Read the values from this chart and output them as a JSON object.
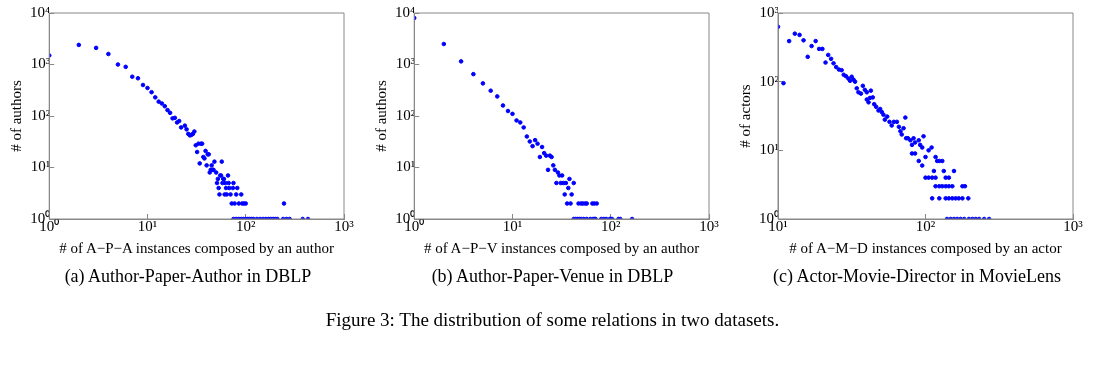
{
  "chart_data": [
    {
      "type": "scatter",
      "title": "(a) Author-Paper-Author in DBLP",
      "xlabel": "# of A−P−A instances composed by an author",
      "ylabel": "# of authors",
      "log": "xy",
      "grid": false,
      "marker": "circle",
      "legend": false,
      "xlim": [
        1,
        1000
      ],
      "ylim": [
        1,
        10000
      ],
      "xticks": [
        {
          "value": 1,
          "label": "10⁰"
        },
        {
          "value": 10,
          "label": "10¹"
        },
        {
          "value": 100,
          "label": "10²"
        },
        {
          "value": 1000,
          "label": "10³"
        }
      ],
      "yticks": [
        {
          "value": 1,
          "label": "10⁰"
        },
        {
          "value": 10,
          "label": "10¹"
        },
        {
          "value": 100,
          "label": "10²"
        },
        {
          "value": 1000,
          "label": "10³"
        },
        {
          "value": 10000,
          "label": "10⁴"
        }
      ],
      "annotations": [
        "Figure 3: The distribution of some relations in two datasets."
      ],
      "series": [
        {
          "color": "#0000ff",
          "x": [
            1,
            2,
            3,
            4,
            5,
            6,
            7,
            8,
            9,
            10,
            11,
            12,
            13,
            14,
            15,
            16,
            17,
            18,
            19,
            20,
            21,
            22,
            24,
            25,
            26,
            27,
            28,
            29,
            30,
            31,
            32,
            33,
            34,
            35,
            36,
            37,
            38,
            39,
            40,
            41,
            42,
            43,
            44,
            45,
            46,
            47,
            48,
            50,
            51,
            52,
            53,
            54,
            55,
            56,
            57,
            58,
            59,
            60,
            61,
            62,
            63,
            64,
            66,
            67,
            68,
            70,
            72,
            74,
            75,
            77,
            80,
            82,
            85,
            90,
            92,
            96,
            100,
            75,
            80,
            85,
            90,
            95,
            100,
            105,
            110,
            115,
            120,
            130,
            140,
            150,
            160,
            170,
            180,
            190,
            200,
            210,
            240,
            245,
            260,
            280,
            380,
            430
          ],
          "values": [
            1500,
            2400,
            2100,
            1600,
            1000,
            900,
            580,
            540,
            400,
            350,
            290,
            230,
            190,
            175,
            155,
            130,
            115,
            90,
            92,
            75,
            80,
            60,
            65,
            55,
            45,
            42,
            43,
            45,
            50,
            27,
            20,
            29,
            12,
            29,
            29,
            16,
            15,
            21,
            11,
            18,
            18,
            8,
            9,
            11,
            9,
            9,
            13,
            8,
            5,
            6,
            4,
            3,
            7,
            7,
            13,
            5,
            6,
            6,
            3,
            5,
            4,
            3,
            7,
            5,
            4,
            3,
            2,
            4,
            5,
            2,
            3,
            4,
            2,
            3,
            2,
            2,
            2,
            1,
            1,
            1,
            1,
            1,
            1,
            1,
            1,
            1,
            1,
            1,
            1,
            1,
            1,
            1,
            1,
            1,
            1,
            1,
            1,
            2,
            1,
            1,
            1,
            1
          ]
        }
      ]
    },
    {
      "type": "scatter",
      "title": "(b) Author-Paper-Venue in DBLP",
      "xlabel": "# of A−P−V instances composed by an author",
      "ylabel": "# of authors",
      "log": "xy",
      "grid": false,
      "marker": "circle",
      "legend": false,
      "xlim": [
        1,
        1000
      ],
      "ylim": [
        1,
        10000
      ],
      "xticks": [
        {
          "value": 1,
          "label": "10⁰"
        },
        {
          "value": 10,
          "label": "10¹"
        },
        {
          "value": 100,
          "label": "10²"
        },
        {
          "value": 1000,
          "label": "10³"
        }
      ],
      "yticks": [
        {
          "value": 1,
          "label": "10⁰"
        },
        {
          "value": 10,
          "label": "10¹"
        },
        {
          "value": 100,
          "label": "10²"
        },
        {
          "value": 1000,
          "label": "10³"
        },
        {
          "value": 10000,
          "label": "10⁴"
        }
      ],
      "series": [
        {
          "color": "#0000ff",
          "x": [
            1,
            2,
            3,
            4,
            5,
            6,
            7,
            8,
            9,
            10,
            11,
            12,
            13,
            14,
            15,
            16,
            17,
            18,
            19,
            20,
            21,
            22,
            23,
            24,
            25,
            26,
            27,
            28,
            29,
            30,
            31,
            32,
            33,
            34,
            35,
            36,
            37,
            38,
            39,
            40,
            42,
            47,
            50,
            52,
            55,
            57,
            65,
            68,
            72,
            42,
            44,
            46,
            48,
            50,
            53,
            57,
            62,
            66,
            68,
            70,
            80,
            85,
            90,
            98,
            100,
            103,
            120,
            125,
            165
          ],
          "values": [
            8000,
            2500,
            1150,
            650,
            430,
            310,
            240,
            160,
            125,
            110,
            82,
            75,
            60,
            40,
            32,
            26,
            34,
            29,
            16,
            25,
            19,
            17,
            9,
            17,
            16,
            11,
            9,
            5,
            8,
            7,
            5,
            7,
            5,
            3,
            5,
            2,
            4,
            6,
            2,
            3,
            5,
            2,
            2,
            2,
            2,
            2,
            2,
            2,
            2,
            1,
            1,
            1,
            1,
            1,
            1,
            1,
            1,
            1,
            1,
            1,
            1,
            1,
            1,
            1,
            1,
            1,
            1,
            1,
            1
          ]
        }
      ]
    },
    {
      "type": "scatter",
      "title": "(c) Actor-Movie-Director in MovieLens",
      "xlabel": "# of A−M−D instances composed by an actor",
      "ylabel": "# of actors",
      "log": "xy",
      "grid": false,
      "marker": "circle",
      "legend": false,
      "xlim": [
        10,
        1000
      ],
      "ylim": [
        1,
        1000
      ],
      "xticks": [
        {
          "value": 10,
          "label": "10¹"
        },
        {
          "value": 100,
          "label": "10²"
        },
        {
          "value": 1000,
          "label": "10³"
        }
      ],
      "yticks": [
        {
          "value": 1,
          "label": "10⁰"
        },
        {
          "value": 10,
          "label": "10¹"
        },
        {
          "value": 100,
          "label": "10²"
        },
        {
          "value": 1000,
          "label": "10³"
        }
      ],
      "series": [
        {
          "color": "#0000ff",
          "x": [
            10,
            10.9,
            11.9,
            13,
            14,
            14.9,
            15.9,
            16.9,
            18,
            19,
            20,
            21,
            21.9,
            22.9,
            23.8,
            24.8,
            25.9,
            27,
            27.9,
            28.9,
            30,
            30.8,
            31.6,
            32.5,
            33.3,
            34.2,
            35.1,
            36.5,
            37.6,
            38.8,
            40,
            40,
            41.1,
            42,
            42.6,
            43.9,
            44.9,
            46.3,
            48,
            49.3,
            50.6,
            51.9,
            53,
            55,
            57,
            59,
            61,
            64,
            66,
            67.6,
            69,
            71,
            73,
            73.9,
            76,
            79,
            81,
            83,
            85,
            90,
            92,
            97,
            95,
            81,
            85,
            90,
            95,
            100,
            105,
            110,
            117,
            120,
            124,
            130,
            100,
            105,
            111,
            117,
            137,
            144,
            114,
            133,
            156,
            117,
            124,
            130,
            137,
            144,
            152,
            178,
            185,
            111,
            124,
            137,
            144,
            152,
            160,
            168,
            178,
            195,
            140,
            148,
            156,
            164,
            173,
            183,
            197,
            208,
            219,
            231,
            250,
            270
          ],
          "values": [
            630,
            95,
            390,
            500,
            480,
            400,
            230,
            330,
            390,
            300,
            300,
            190,
            245,
            215,
            185,
            163,
            150,
            147,
            126,
            120,
            111,
            103,
            118,
            107,
            100,
            80,
            70,
            67,
            87,
            76,
            70,
            55,
            50,
            58,
            74,
            59,
            47,
            43,
            38,
            40,
            36,
            33,
            28,
            31,
            26,
            23,
            26,
            26,
            22,
            19,
            17,
            21,
            30,
            15,
            15,
            14,
            12,
            15,
            13,
            14,
            12,
            16,
            11,
            9,
            9,
            7,
            6,
            8,
            10,
            11,
            8,
            7,
            7,
            7,
            4,
            4,
            4,
            4,
            4,
            4,
            5,
            5,
            5,
            3,
            3,
            3,
            3,
            3,
            3,
            3,
            3,
            2,
            2,
            2,
            2,
            2,
            2,
            2,
            2,
            2,
            1,
            1,
            1,
            1,
            1,
            1,
            1,
            1,
            1,
            1,
            1,
            1
          ]
        }
      ]
    }
  ]
}
